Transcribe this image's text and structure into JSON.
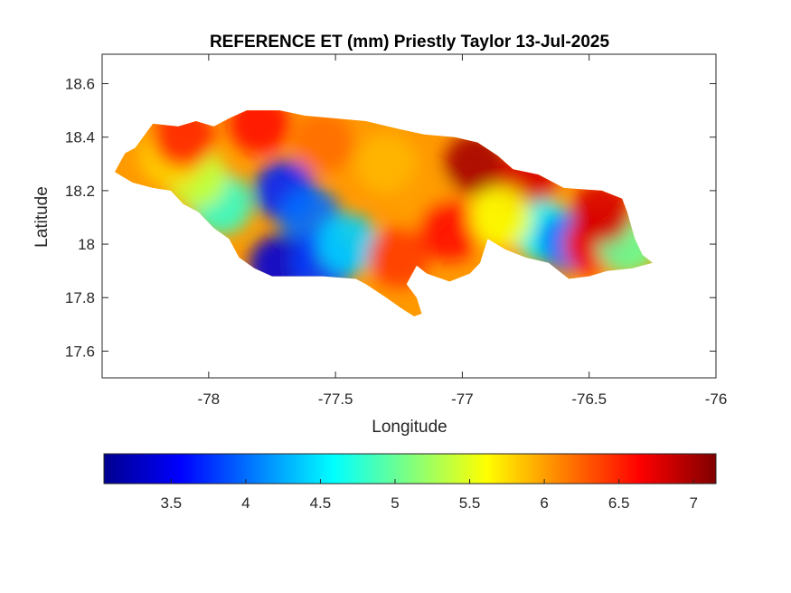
{
  "chart_data": {
    "type": "heatmap",
    "title": "REFERENCE ET (mm) Priestly Taylor 13-Jul-2025",
    "xlabel": "Longitude",
    "ylabel": "Latitude",
    "xlim": [
      -78.42,
      -76.0
    ],
    "ylim": [
      17.5,
      18.71
    ],
    "xticks": [
      -78,
      -77.5,
      -77,
      -76.5,
      -76
    ],
    "xtick_labels": [
      "-78",
      "-77.5",
      "-77",
      "-76.5",
      "-76"
    ],
    "yticks": [
      17.6,
      17.8,
      18,
      18.2,
      18.4,
      18.6
    ],
    "ytick_labels": [
      "17.6",
      "17.8",
      "18",
      "18.2",
      "18.4",
      "18.6"
    ],
    "colormap": "jet",
    "colorbar": {
      "orientation": "horizontal",
      "location": "below",
      "range": [
        3.05,
        7.15
      ],
      "ticks": [
        3.5,
        4,
        4.5,
        5,
        5.5,
        6,
        6.5,
        7
      ],
      "tick_labels": [
        "3.5",
        "4",
        "4.5",
        "5",
        "5.5",
        "6",
        "6.5",
        "7"
      ]
    },
    "land_outline": [
      [
        -78.37,
        18.27
      ],
      [
        -78.33,
        18.34
      ],
      [
        -78.29,
        18.36
      ],
      [
        -78.22,
        18.45
      ],
      [
        -78.12,
        18.44
      ],
      [
        -78.05,
        18.46
      ],
      [
        -77.98,
        18.44
      ],
      [
        -77.92,
        18.47
      ],
      [
        -77.85,
        18.5
      ],
      [
        -77.72,
        18.5
      ],
      [
        -77.62,
        18.48
      ],
      [
        -77.5,
        18.47
      ],
      [
        -77.38,
        18.46
      ],
      [
        -77.25,
        18.43
      ],
      [
        -77.15,
        18.41
      ],
      [
        -77.03,
        18.4
      ],
      [
        -76.94,
        18.38
      ],
      [
        -76.86,
        18.33
      ],
      [
        -76.8,
        18.28
      ],
      [
        -76.7,
        18.26
      ],
      [
        -76.6,
        18.21
      ],
      [
        -76.45,
        18.2
      ],
      [
        -76.37,
        18.17
      ],
      [
        -76.35,
        18.12
      ],
      [
        -76.32,
        18.02
      ],
      [
        -76.29,
        17.96
      ],
      [
        -76.25,
        17.93
      ],
      [
        -76.33,
        17.91
      ],
      [
        -76.43,
        17.9
      ],
      [
        -76.5,
        17.88
      ],
      [
        -76.58,
        17.87
      ],
      [
        -76.66,
        17.93
      ],
      [
        -76.75,
        17.95
      ],
      [
        -76.83,
        17.98
      ],
      [
        -76.9,
        18.02
      ],
      [
        -76.93,
        17.93
      ],
      [
        -76.97,
        17.89
      ],
      [
        -77.05,
        17.86
      ],
      [
        -77.14,
        17.89
      ],
      [
        -77.18,
        17.92
      ],
      [
        -77.22,
        17.85
      ],
      [
        -77.18,
        17.8
      ],
      [
        -77.16,
        17.74
      ],
      [
        -77.19,
        17.73
      ],
      [
        -77.24,
        17.76
      ],
      [
        -77.3,
        17.8
      ],
      [
        -77.38,
        17.85
      ],
      [
        -77.42,
        17.87
      ],
      [
        -77.55,
        17.88
      ],
      [
        -77.75,
        17.88
      ],
      [
        -77.82,
        17.91
      ],
      [
        -77.88,
        17.95
      ],
      [
        -77.92,
        18.02
      ],
      [
        -77.98,
        18.06
      ],
      [
        -78.04,
        18.12
      ],
      [
        -78.1,
        18.15
      ],
      [
        -78.15,
        18.2
      ],
      [
        -78.22,
        18.21
      ],
      [
        -78.3,
        18.23
      ]
    ],
    "et_pattern": [
      {
        "lon": -77.7,
        "lat": 18.2,
        "value": 3.7
      },
      {
        "lon": -77.6,
        "lat": 18.1,
        "value": 4.0
      },
      {
        "lon": -77.72,
        "lat": 17.92,
        "value": 3.4
      },
      {
        "lon": -77.55,
        "lat": 17.93,
        "value": 3.8
      },
      {
        "lon": -77.45,
        "lat": 18.0,
        "value": 4.4
      },
      {
        "lon": -77.95,
        "lat": 18.15,
        "value": 4.8
      },
      {
        "lon": -78.05,
        "lat": 18.25,
        "value": 5.4
      },
      {
        "lon": -78.15,
        "lat": 18.33,
        "value": 5.8
      },
      {
        "lon": -78.1,
        "lat": 18.4,
        "value": 6.5
      },
      {
        "lon": -77.8,
        "lat": 18.45,
        "value": 6.6
      },
      {
        "lon": -77.55,
        "lat": 18.38,
        "value": 6.2
      },
      {
        "lon": -77.3,
        "lat": 18.3,
        "value": 5.9
      },
      {
        "lon": -77.15,
        "lat": 18.15,
        "value": 6.0
      },
      {
        "lon": -77.25,
        "lat": 17.95,
        "value": 6.4
      },
      {
        "lon": -77.05,
        "lat": 18.05,
        "value": 6.6
      },
      {
        "lon": -76.95,
        "lat": 18.3,
        "value": 7.0
      },
      {
        "lon": -76.75,
        "lat": 18.22,
        "value": 6.8
      },
      {
        "lon": -76.68,
        "lat": 18.05,
        "value": 4.6
      },
      {
        "lon": -76.58,
        "lat": 18.01,
        "value": 4.0
      },
      {
        "lon": -76.48,
        "lat": 18.0,
        "value": 6.6
      },
      {
        "lon": -76.35,
        "lat": 18.0,
        "value": 5.0
      },
      {
        "lon": -76.45,
        "lat": 18.12,
        "value": 6.8
      },
      {
        "lon": -76.85,
        "lat": 18.1,
        "value": 5.6
      }
    ]
  }
}
